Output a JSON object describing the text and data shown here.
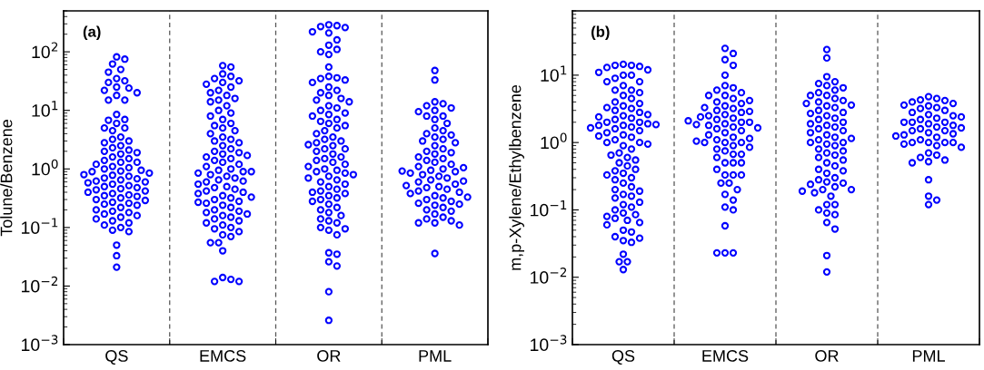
{
  "chart_data": [
    {
      "type": "scatter",
      "title": "(a)",
      "ylabel": "Tolune/Benzene",
      "categories": [
        "QS",
        "EMCS",
        "OR",
        "PML"
      ],
      "log": true,
      "marker": "circle",
      "ylim": [
        0.001,
        500
      ],
      "yticks": [
        {
          "value": 0.001,
          "label": "10$^{−3}$"
        },
        {
          "value": 0.01,
          "label": "10$^{−2}$"
        },
        {
          "value": 0.1,
          "label": "10$^{−1}$"
        },
        {
          "value": 1,
          "label": "10$^{0}$"
        },
        {
          "value": 10,
          "label": "10$^{1}$"
        },
        {
          "value": 100,
          "label": "10$^{2}$"
        }
      ],
      "series": [
        {
          "type": "scatter",
          "color": "#0000ff",
          "x": [
            "QS",
            "QS",
            "QS",
            "QS",
            "QS",
            "QS",
            "QS",
            "QS",
            "QS",
            "QS",
            "QS",
            "QS",
            "QS",
            "QS",
            "QS",
            "QS",
            "QS",
            "QS",
            "QS",
            "QS",
            "QS",
            "QS",
            "QS",
            "QS",
            "QS",
            "QS",
            "QS",
            "QS",
            "QS",
            "QS",
            "QS",
            "QS",
            "QS",
            "QS",
            "QS",
            "QS",
            "QS",
            "QS",
            "QS",
            "QS",
            "QS",
            "QS",
            "QS",
            "QS",
            "QS",
            "QS",
            "QS",
            "QS",
            "QS",
            "QS",
            "QS",
            "QS",
            "QS",
            "QS",
            "QS",
            "QS",
            "QS",
            "QS",
            "QS",
            "QS",
            "QS",
            "QS",
            "QS",
            "QS",
            "QS",
            "QS",
            "QS",
            "QS",
            "QS",
            "QS",
            "QS",
            "QS",
            "QS",
            "QS",
            "QS",
            "QS",
            "QS",
            "QS",
            "QS",
            "QS",
            "QS",
            "QS",
            "QS",
            "QS",
            "QS",
            "QS",
            "QS",
            "QS",
            "QS",
            "QS"
          ],
          "values": [
            82,
            75,
            62,
            50,
            45,
            35,
            32,
            30,
            25,
            24,
            22,
            20,
            18,
            15,
            15,
            8.5,
            7,
            6.8,
            6,
            5,
            5,
            4.5,
            3.5,
            3.2,
            3,
            2.8,
            2.5,
            2.3,
            2.1,
            2,
            1.9,
            1.8,
            1.6,
            1.5,
            1.4,
            1.3,
            1.3,
            1.2,
            1.1,
            1.05,
            1,
            0.95,
            0.92,
            0.9,
            0.85,
            0.8,
            0.78,
            0.75,
            0.7,
            0.68,
            0.65,
            0.62,
            0.6,
            0.58,
            0.55,
            0.52,
            0.5,
            0.48,
            0.46,
            0.44,
            0.42,
            0.4,
            0.38,
            0.36,
            0.35,
            0.34,
            0.32,
            0.3,
            0.29,
            0.27,
            0.26,
            0.25,
            0.24,
            0.22,
            0.2,
            0.19,
            0.18,
            0.17,
            0.16,
            0.15,
            0.14,
            0.13,
            0.12,
            0.11,
            0.1,
            0.09,
            0.085,
            0.05,
            0.033,
            0.021
          ]
        },
        {
          "type": "scatter",
          "color": "#0000ff",
          "x": [
            "EMCS",
            "EMCS",
            "EMCS",
            "EMCS",
            "EMCS",
            "EMCS",
            "EMCS",
            "EMCS",
            "EMCS",
            "EMCS",
            "EMCS",
            "EMCS",
            "EMCS",
            "EMCS",
            "EMCS",
            "EMCS",
            "EMCS",
            "EMCS",
            "EMCS",
            "EMCS",
            "EMCS",
            "EMCS",
            "EMCS",
            "EMCS",
            "EMCS",
            "EMCS",
            "EMCS",
            "EMCS",
            "EMCS",
            "EMCS",
            "EMCS",
            "EMCS",
            "EMCS",
            "EMCS",
            "EMCS",
            "EMCS",
            "EMCS",
            "EMCS",
            "EMCS",
            "EMCS",
            "EMCS",
            "EMCS",
            "EMCS",
            "EMCS",
            "EMCS",
            "EMCS",
            "EMCS",
            "EMCS",
            "EMCS",
            "EMCS",
            "EMCS",
            "EMCS",
            "EMCS",
            "EMCS",
            "EMCS",
            "EMCS",
            "EMCS",
            "EMCS",
            "EMCS",
            "EMCS",
            "EMCS",
            "EMCS",
            "EMCS",
            "EMCS",
            "EMCS",
            "EMCS",
            "EMCS",
            "EMCS",
            "EMCS",
            "EMCS",
            "EMCS",
            "EMCS",
            "EMCS",
            "EMCS",
            "EMCS",
            "EMCS",
            "EMCS",
            "EMCS",
            "EMCS",
            "EMCS",
            "EMCS",
            "EMCS",
            "EMCS",
            "EMCS",
            "EMCS",
            "EMCS",
            "EMCS",
            "EMCS",
            "EMCS",
            "EMCS"
          ],
          "values": [
            58,
            55,
            42,
            38,
            35,
            32,
            30,
            28,
            25,
            22,
            20,
            18,
            16,
            15,
            14,
            12,
            10,
            9,
            8,
            7,
            6,
            5.5,
            5,
            4.5,
            4,
            3.5,
            3.2,
            3,
            2.8,
            2.5,
            2.2,
            2,
            1.9,
            1.8,
            1.6,
            1.5,
            1.4,
            1.3,
            1.2,
            1.1,
            1,
            0.95,
            0.9,
            0.85,
            0.8,
            0.75,
            0.7,
            0.65,
            0.62,
            0.6,
            0.55,
            0.5,
            0.48,
            0.45,
            0.42,
            0.4,
            0.38,
            0.35,
            0.32,
            0.3,
            0.28,
            0.26,
            0.24,
            0.22,
            0.2,
            0.19,
            0.18,
            0.16,
            0.15,
            0.14,
            0.13,
            0.12,
            0.11,
            0.1,
            0.095,
            0.085,
            0.075,
            0.07,
            0.055,
            0.055,
            0.04,
            0.014,
            0.013,
            0.012,
            0.012,
            1.7,
            0.33,
            0.27,
            0.17,
            0.9
          ]
        },
        {
          "type": "scatter",
          "color": "#0000ff",
          "x": [
            "OR",
            "OR",
            "OR",
            "OR",
            "OR",
            "OR",
            "OR",
            "OR",
            "OR",
            "OR",
            "OR",
            "OR",
            "OR",
            "OR",
            "OR",
            "OR",
            "OR",
            "OR",
            "OR",
            "OR",
            "OR",
            "OR",
            "OR",
            "OR",
            "OR",
            "OR",
            "OR",
            "OR",
            "OR",
            "OR",
            "OR",
            "OR",
            "OR",
            "OR",
            "OR",
            "OR",
            "OR",
            "OR",
            "OR",
            "OR",
            "OR",
            "OR",
            "OR",
            "OR",
            "OR",
            "OR",
            "OR",
            "OR",
            "OR",
            "OR",
            "OR",
            "OR",
            "OR",
            "OR",
            "OR",
            "OR",
            "OR",
            "OR",
            "OR",
            "OR",
            "OR",
            "OR",
            "OR",
            "OR",
            "OR",
            "OR",
            "OR",
            "OR",
            "OR",
            "OR",
            "OR",
            "OR",
            "OR",
            "OR",
            "OR",
            "OR",
            "OR",
            "OR",
            "OR",
            "OR",
            "OR",
            "OR",
            "OR",
            "OR",
            "OR",
            "OR",
            "OR",
            "OR",
            "OR",
            "OR"
          ],
          "values": [
            290,
            280,
            270,
            260,
            220,
            210,
            160,
            130,
            110,
            100,
            90,
            55,
            38,
            36,
            35,
            33,
            30,
            25,
            22,
            20,
            18,
            16,
            15,
            14,
            12,
            11,
            10,
            9,
            8.5,
            8,
            7,
            6.5,
            6,
            5.5,
            5,
            4.5,
            4,
            3.5,
            3.2,
            3,
            2.8,
            2.5,
            2.2,
            2.2,
            2,
            1.8,
            1.6,
            1.5,
            1.4,
            1.3,
            1.2,
            1.1,
            1,
            0.95,
            0.9,
            0.85,
            0.8,
            0.75,
            0.7,
            0.65,
            0.6,
            0.55,
            0.5,
            0.45,
            0.42,
            0.4,
            0.38,
            0.35,
            0.32,
            0.3,
            0.28,
            0.25,
            0.22,
            0.2,
            0.18,
            0.16,
            0.14,
            0.13,
            0.12,
            0.1,
            0.095,
            0.09,
            0.075,
            0.037,
            0.035,
            0.026,
            0.022,
            0.008,
            0.0026,
            2.6
          ]
        },
        {
          "type": "scatter",
          "color": "#0000ff",
          "x": [
            "PML",
            "PML",
            "PML",
            "PML",
            "PML",
            "PML",
            "PML",
            "PML",
            "PML",
            "PML",
            "PML",
            "PML",
            "PML",
            "PML",
            "PML",
            "PML",
            "PML",
            "PML",
            "PML",
            "PML",
            "PML",
            "PML",
            "PML",
            "PML",
            "PML",
            "PML",
            "PML",
            "PML",
            "PML",
            "PML",
            "PML",
            "PML",
            "PML",
            "PML",
            "PML",
            "PML",
            "PML",
            "PML",
            "PML",
            "PML",
            "PML",
            "PML",
            "PML",
            "PML",
            "PML",
            "PML",
            "PML",
            "PML",
            "PML",
            "PML",
            "PML",
            "PML",
            "PML",
            "PML",
            "PML",
            "PML",
            "PML",
            "PML",
            "PML",
            "PML",
            "PML",
            "PML",
            "PML",
            "PML",
            "PML",
            "PML",
            "PML",
            "PML",
            "PML",
            "PML"
          ],
          "values": [
            48,
            33,
            14,
            13,
            12,
            11,
            10,
            9.5,
            8,
            8,
            7,
            6,
            5,
            4.5,
            4,
            3.8,
            3.5,
            3.2,
            3,
            2.8,
            2.5,
            2.2,
            2,
            1.9,
            1.8,
            1.6,
            1.5,
            1.4,
            1.3,
            1.2,
            1.1,
            1,
            0.95,
            0.9,
            0.85,
            0.8,
            0.75,
            0.7,
            0.65,
            0.6,
            0.55,
            0.5,
            0.48,
            0.45,
            0.42,
            0.4,
            0.38,
            0.35,
            0.32,
            0.3,
            0.28,
            0.26,
            0.24,
            0.22,
            0.2,
            0.19,
            0.17,
            0.15,
            0.14,
            0.13,
            0.12,
            0.12,
            0.11,
            0.036,
            1.05,
            0.92,
            0.62,
            0.52,
            0.33,
            0.25
          ]
        }
      ]
    },
    {
      "type": "scatter",
      "title": "(b)",
      "ylabel": "m,p-Xylene/Ethylbenzene",
      "categories": [
        "QS",
        "EMCS",
        "OR",
        "PML"
      ],
      "log": true,
      "marker": "circle",
      "ylim": [
        0.001,
        90
      ],
      "yticks": [
        {
          "value": 0.001,
          "label": "10$^{−3}$"
        },
        {
          "value": 0.01,
          "label": "10$^{−2}$"
        },
        {
          "value": 0.1,
          "label": "10$^{−1}$"
        },
        {
          "value": 1,
          "label": "10$^{0}$"
        },
        {
          "value": 10,
          "label": "10$^{1}$"
        }
      ],
      "series": [
        {
          "type": "scatter",
          "color": "#0000ff",
          "x": [
            "QS",
            "QS",
            "QS",
            "QS",
            "QS",
            "QS",
            "QS",
            "QS",
            "QS",
            "QS",
            "QS",
            "QS",
            "QS",
            "QS",
            "QS",
            "QS",
            "QS",
            "QS",
            "QS",
            "QS",
            "QS",
            "QS",
            "QS",
            "QS",
            "QS",
            "QS",
            "QS",
            "QS",
            "QS",
            "QS",
            "QS",
            "QS",
            "QS",
            "QS",
            "QS",
            "QS",
            "QS",
            "QS",
            "QS",
            "QS",
            "QS",
            "QS",
            "QS",
            "QS",
            "QS",
            "QS",
            "QS",
            "QS",
            "QS",
            "QS",
            "QS",
            "QS",
            "QS",
            "QS",
            "QS",
            "QS",
            "QS",
            "QS",
            "QS",
            "QS",
            "QS",
            "QS",
            "QS",
            "QS",
            "QS",
            "QS",
            "QS",
            "QS",
            "QS",
            "QS",
            "QS",
            "QS",
            "QS",
            "QS",
            "QS",
            "QS",
            "QS",
            "QS",
            "QS",
            "QS",
            "QS",
            "QS",
            "QS",
            "QS",
            "QS",
            "QS",
            "QS",
            "QS",
            "QS",
            "QS"
          ],
          "values": [
            14.5,
            14,
            14,
            13.5,
            13,
            12,
            11,
            10,
            10,
            9,
            8,
            8,
            7,
            6,
            6,
            5.5,
            5,
            4.5,
            4,
            3.8,
            3.5,
            3.2,
            3,
            2.8,
            2.5,
            2.3,
            2.2,
            2,
            2,
            1.9,
            1.8,
            1.8,
            1.7,
            1.6,
            1.5,
            1.4,
            1.3,
            1.2,
            1.1,
            1,
            1,
            0.9,
            0.8,
            0.7,
            0.65,
            0.6,
            0.55,
            0.5,
            0.45,
            0.4,
            0.38,
            0.35,
            0.33,
            0.3,
            0.28,
            0.25,
            0.22,
            0.2,
            0.19,
            0.17,
            0.16,
            0.15,
            0.13,
            0.12,
            0.11,
            0.1,
            0.09,
            0.085,
            0.08,
            0.075,
            0.07,
            0.065,
            0.06,
            0.05,
            0.047,
            0.04,
            0.038,
            0.035,
            0.033,
            0.022,
            0.017,
            0.017,
            0.013,
            2.4,
            1.85,
            1.65,
            2.6,
            3.3,
            0.95,
            1.25
          ]
        },
        {
          "type": "scatter",
          "color": "#0000ff",
          "x": [
            "EMCS",
            "EMCS",
            "EMCS",
            "EMCS",
            "EMCS",
            "EMCS",
            "EMCS",
            "EMCS",
            "EMCS",
            "EMCS",
            "EMCS",
            "EMCS",
            "EMCS",
            "EMCS",
            "EMCS",
            "EMCS",
            "EMCS",
            "EMCS",
            "EMCS",
            "EMCS",
            "EMCS",
            "EMCS",
            "EMCS",
            "EMCS",
            "EMCS",
            "EMCS",
            "EMCS",
            "EMCS",
            "EMCS",
            "EMCS",
            "EMCS",
            "EMCS",
            "EMCS",
            "EMCS",
            "EMCS",
            "EMCS",
            "EMCS",
            "EMCS",
            "EMCS",
            "EMCS",
            "EMCS",
            "EMCS",
            "EMCS",
            "EMCS",
            "EMCS",
            "EMCS",
            "EMCS",
            "EMCS",
            "EMCS",
            "EMCS",
            "EMCS",
            "EMCS",
            "EMCS",
            "EMCS",
            "EMCS",
            "EMCS",
            "EMCS",
            "EMCS",
            "EMCS",
            "EMCS",
            "EMCS",
            "EMCS",
            "EMCS",
            "EMCS",
            "EMCS",
            "EMCS",
            "EMCS",
            "EMCS",
            "EMCS",
            "EMCS"
          ],
          "values": [
            25,
            21,
            17,
            14,
            10,
            7,
            6.5,
            6,
            5.5,
            5,
            5,
            4.5,
            4,
            3.8,
            3.5,
            3.2,
            3,
            2.8,
            2.6,
            2.5,
            2.3,
            2.2,
            2,
            2,
            1.9,
            1.8,
            1.7,
            1.6,
            1.5,
            1.4,
            1.3,
            1.2,
            1.1,
            1,
            1,
            1,
            0.9,
            0.8,
            0.75,
            0.67,
            0.67,
            0.6,
            0.5,
            0.5,
            0.5,
            0.4,
            0.33,
            0.33,
            0.33,
            0.25,
            0.25,
            0.2,
            0.17,
            0.14,
            0.11,
            0.1,
            0.058,
            0.023,
            0.023,
            0.023,
            2.4,
            1.85,
            1.65,
            3.3,
            2.1,
            1.15,
            1.05,
            0.85,
            2.9,
            4.2
          ]
        },
        {
          "type": "scatter",
          "color": "#0000ff",
          "x": [
            "OR",
            "OR",
            "OR",
            "OR",
            "OR",
            "OR",
            "OR",
            "OR",
            "OR",
            "OR",
            "OR",
            "OR",
            "OR",
            "OR",
            "OR",
            "OR",
            "OR",
            "OR",
            "OR",
            "OR",
            "OR",
            "OR",
            "OR",
            "OR",
            "OR",
            "OR",
            "OR",
            "OR",
            "OR",
            "OR",
            "OR",
            "OR",
            "OR",
            "OR",
            "OR",
            "OR",
            "OR",
            "OR",
            "OR",
            "OR",
            "OR",
            "OR",
            "OR",
            "OR",
            "OR",
            "OR",
            "OR",
            "OR",
            "OR",
            "OR",
            "OR",
            "OR",
            "OR",
            "OR",
            "OR",
            "OR",
            "OR",
            "OR",
            "OR",
            "OR",
            "OR",
            "OR",
            "OR",
            "OR",
            "OR",
            "OR",
            "OR",
            "OR",
            "OR",
            "OR"
          ],
          "values": [
            24,
            18,
            9.5,
            8,
            7.5,
            7,
            6.5,
            6,
            5.5,
            5,
            5,
            4.5,
            4.2,
            4,
            3.8,
            3.5,
            3.3,
            3,
            2.8,
            2.5,
            2.3,
            2.2,
            2,
            1.9,
            1.8,
            1.7,
            1.6,
            1.5,
            1.4,
            1.3,
            1.2,
            1.1,
            1,
            1,
            0.95,
            0.9,
            0.8,
            0.75,
            0.7,
            0.65,
            0.6,
            0.55,
            0.5,
            0.45,
            0.4,
            0.38,
            0.35,
            0.3,
            0.28,
            0.26,
            0.25,
            0.24,
            0.22,
            0.2,
            0.2,
            0.19,
            0.18,
            0.16,
            0.12,
            0.12,
            0.1,
            0.09,
            0.085,
            0.065,
            0.052,
            0.021,
            0.012,
            3.6,
            2.7,
            1.15
          ]
        },
        {
          "type": "scatter",
          "color": "#0000ff",
          "x": [
            "PML",
            "PML",
            "PML",
            "PML",
            "PML",
            "PML",
            "PML",
            "PML",
            "PML",
            "PML",
            "PML",
            "PML",
            "PML",
            "PML",
            "PML",
            "PML",
            "PML",
            "PML",
            "PML",
            "PML",
            "PML",
            "PML",
            "PML",
            "PML",
            "PML",
            "PML",
            "PML",
            "PML",
            "PML",
            "PML",
            "PML",
            "PML",
            "PML",
            "PML",
            "PML",
            "PML",
            "PML",
            "PML",
            "PML",
            "PML",
            "PML",
            "PML",
            "PML",
            "PML",
            "PML",
            "PML",
            "PML",
            "PML",
            "PML",
            "PML"
          ],
          "values": [
            4.8,
            4.5,
            4.3,
            4.2,
            4,
            3.8,
            3.5,
            3.3,
            3.2,
            3,
            2.8,
            2.6,
            2.5,
            2.3,
            2.2,
            2,
            2,
            2,
            1.9,
            1.8,
            1.7,
            1.6,
            1.5,
            1.5,
            1.4,
            1.35,
            1.3,
            1.2,
            1.1,
            1,
            1,
            1,
            1,
            0.95,
            0.9,
            0.85,
            0.7,
            0.65,
            0.6,
            0.55,
            0.52,
            0.5,
            0.28,
            0.16,
            0.14,
            0.12,
            2.4,
            1.65,
            1.25,
            3.6
          ]
        }
      ]
    }
  ]
}
